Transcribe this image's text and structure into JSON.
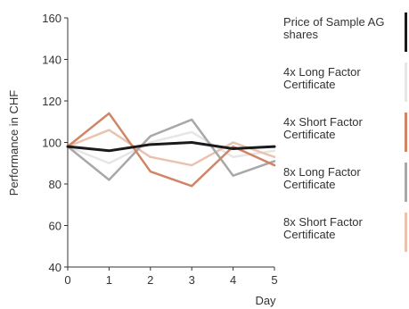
{
  "chart_data": {
    "type": "line",
    "xlabel": "Day",
    "ylabel": "Performance in CHF",
    "x": [
      0,
      1,
      2,
      3,
      4,
      5
    ],
    "xlim": [
      0,
      5
    ],
    "ylim": [
      40,
      160
    ],
    "yticks": [
      40,
      60,
      80,
      100,
      120,
      140,
      160
    ],
    "xticks": [
      0,
      1,
      2,
      3,
      4,
      5
    ],
    "grid": false,
    "legend_position": "right",
    "series": [
      {
        "name": "Price of Sample AG shares",
        "color": "#1a1a1a",
        "values": [
          98,
          96,
          99,
          100,
          97,
          98
        ]
      },
      {
        "name": "4x Long Factor Certificate",
        "color": "#e6e6e6",
        "values": [
          98,
          90,
          100,
          105,
          93,
          96
        ]
      },
      {
        "name": "4x Short Factor Certificate",
        "color": "#d08566",
        "values": [
          98,
          114,
          86,
          79,
          98,
          89
        ]
      },
      {
        "name": "8x Long Factor Certificate",
        "color": "#a8a8a8",
        "values": [
          98,
          82,
          103,
          111,
          84,
          91
        ]
      },
      {
        "name": "8x Short Factor Certificate",
        "color": "#eac3b0",
        "values": [
          98,
          106,
          93,
          89,
          100,
          93
        ]
      }
    ]
  }
}
